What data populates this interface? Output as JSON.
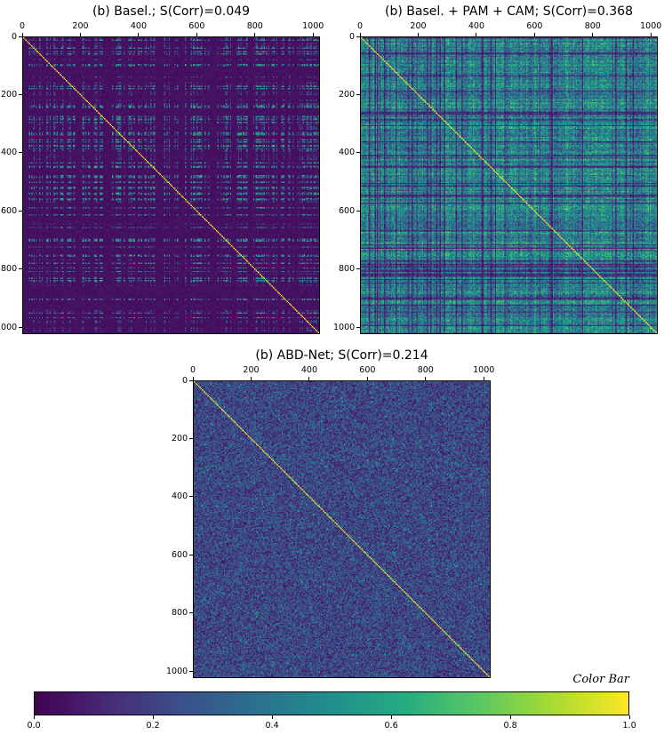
{
  "chart_data": [
    {
      "type": "heatmap",
      "title": "(b) Basel.; S(Corr)=0.049",
      "xticks": [
        "0",
        "200",
        "400",
        "600",
        "800",
        "1000"
      ],
      "yticks": [
        "0",
        "200",
        "400",
        "600",
        "800",
        "1000"
      ],
      "matrix_size": 1024,
      "xlim": [
        0,
        1024
      ],
      "ylim": [
        1024,
        0
      ],
      "diagonal_value": 1.0,
      "mean_offdiag_approx": 0.05
    },
    {
      "type": "heatmap",
      "title": "(b) Basel. + PAM + CAM; S(Corr)=0.368",
      "xticks": [
        "0",
        "200",
        "400",
        "600",
        "800",
        "1000"
      ],
      "yticks": [
        "0",
        "200",
        "400",
        "600",
        "800",
        "1000"
      ],
      "matrix_size": 1024,
      "xlim": [
        0,
        1024
      ],
      "ylim": [
        1024,
        0
      ],
      "diagonal_value": 1.0,
      "mean_offdiag_approx": 0.37
    },
    {
      "type": "heatmap",
      "title": "(b) ABD-Net; S(Corr)=0.214",
      "xticks": [
        "0",
        "200",
        "400",
        "600",
        "800",
        "1000"
      ],
      "yticks": [
        "0",
        "200",
        "400",
        "600",
        "800",
        "1000"
      ],
      "matrix_size": 1024,
      "xlim": [
        0,
        1024
      ],
      "ylim": [
        1024,
        0
      ],
      "diagonal_value": 1.0,
      "mean_offdiag_approx": 0.21
    }
  ],
  "colorbar": {
    "title": "Color Bar",
    "ticks": [
      "0.0",
      "0.2",
      "0.4",
      "0.6",
      "0.8",
      "1.0"
    ],
    "range": [
      0.0,
      1.0
    ],
    "colormap": "viridis"
  }
}
